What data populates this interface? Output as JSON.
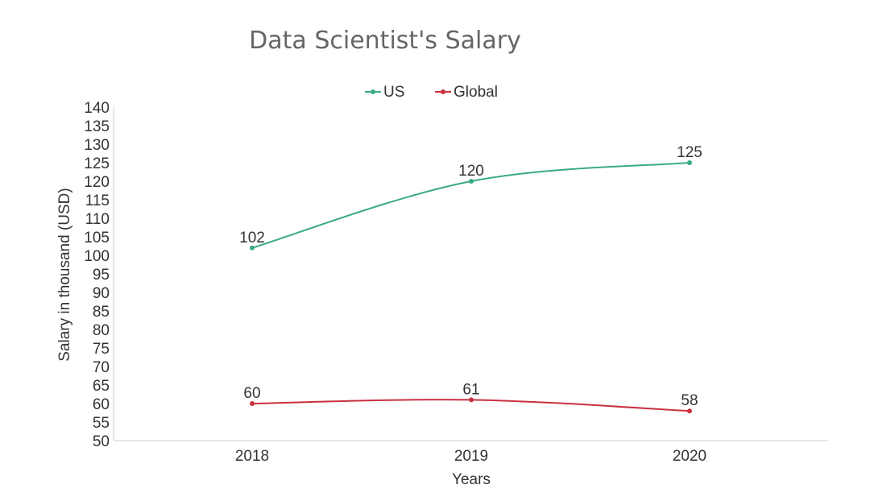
{
  "chart_data": {
    "type": "line",
    "title": "Data Scientist's Salary",
    "xlabel": "Years",
    "ylabel": "Salary in thousand (USD)",
    "categories": [
      "2018",
      "2019",
      "2020"
    ],
    "ylim": [
      50,
      140
    ],
    "ytick_step": 5,
    "grid": false,
    "legend_position": "top-center",
    "smooth": true,
    "series": [
      {
        "name": "US",
        "values": [
          102,
          120,
          125
        ],
        "labels": [
          "102",
          "120",
          "125"
        ],
        "color": "#3aaa87"
      },
      {
        "name": "Global",
        "values": [
          60,
          61,
          58
        ],
        "labels": [
          "60",
          "61",
          "58"
        ],
        "color": "#c9303f"
      }
    ]
  }
}
